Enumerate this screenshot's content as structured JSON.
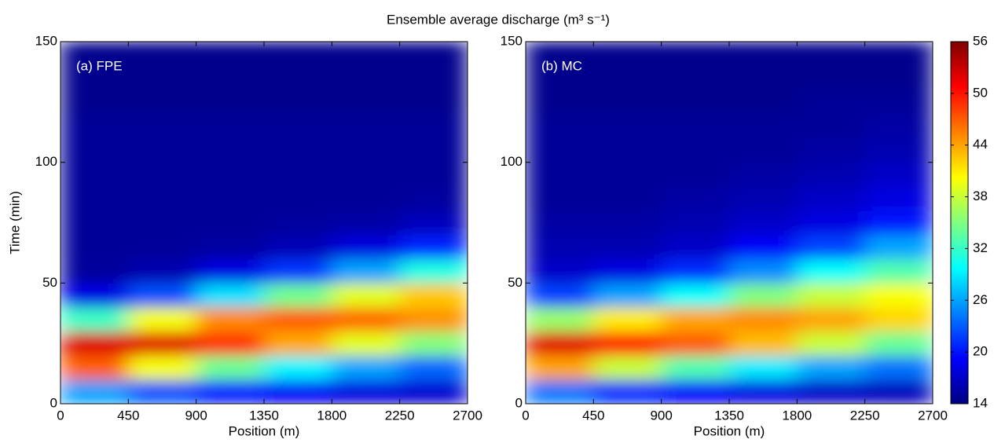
{
  "title": "Ensemble average discharge (m³ s⁻¹)",
  "colorbar": {
    "colormap": "jet",
    "clim": [
      14,
      56
    ],
    "ticks": [
      14,
      20,
      26,
      32,
      38,
      44,
      50,
      56
    ]
  },
  "chart_data": [
    {
      "type": "heatmap",
      "label": "(a) FPE",
      "xlabel": "Position (m)",
      "ylabel": "Time (min)",
      "xlim": [
        0,
        2700
      ],
      "xticks": [
        0,
        450,
        900,
        1350,
        1800,
        2250,
        2700
      ],
      "ylim": [
        0,
        150
      ],
      "yticks": [
        0,
        50,
        100,
        150
      ],
      "x": [
        225,
        675,
        1125,
        1575,
        2025,
        2475
      ],
      "y": [
        5,
        15,
        25,
        35,
        45,
        55,
        65,
        75,
        85,
        95,
        105,
        115,
        125,
        135,
        145
      ],
      "values": [
        [
          25.8,
          22.6,
          20.4,
          18.9,
          17.9,
          17.3
        ],
        [
          46.8,
          39.9,
          34.1,
          29.4,
          26.0,
          23.5
        ],
        [
          52.1,
          52.0,
          48.7,
          43.8,
          39.1,
          35.2
        ],
        [
          32.2,
          39.9,
          45.1,
          46.9,
          46.5,
          44.7
        ],
        [
          18.2,
          22.6,
          28.5,
          34.4,
          39.1,
          42.5
        ],
        [
          15.2,
          16.0,
          18.0,
          21.4,
          26.0,
          30.9
        ],
        [
          15,
          15.1,
          15.4,
          16.2,
          17.9,
          20.7
        ],
        [
          15,
          15,
          15,
          15.3,
          15.6,
          16.5
        ],
        [
          15,
          15,
          15,
          15,
          15,
          15.3
        ],
        [
          15,
          15,
          15,
          15,
          15,
          15
        ],
        [
          15,
          15,
          15,
          15,
          15,
          15
        ],
        [
          15,
          15,
          15,
          15,
          15,
          15
        ],
        [
          14.5,
          14.5,
          14.5,
          14.5,
          14.5,
          14.5
        ],
        [
          14.5,
          14.5,
          14.5,
          14.5,
          14.5,
          14.5
        ],
        [
          14.5,
          14.5,
          14.5,
          14.5,
          14.5,
          14.5
        ]
      ]
    },
    {
      "type": "heatmap",
      "label": "(b) MC",
      "xlabel": "Position (m)",
      "xlim": [
        0,
        2700
      ],
      "xticks": [
        0,
        450,
        900,
        1350,
        1800,
        2250,
        2700
      ],
      "ylim": [
        0,
        150
      ],
      "yticks": [
        0,
        50,
        100,
        150
      ],
      "x": [
        225,
        675,
        1125,
        1575,
        2025,
        2475
      ],
      "y": [
        5,
        15,
        25,
        35,
        45,
        55,
        65,
        75,
        85,
        95,
        105,
        115,
        125,
        135,
        145
      ],
      "values": [
        [
          24,
          21,
          19,
          18,
          17,
          16.5
        ],
        [
          44,
          38,
          33,
          29,
          26,
          24
        ],
        [
          52,
          50,
          47,
          43,
          38,
          34
        ],
        [
          36,
          41,
          44,
          45,
          44,
          42
        ],
        [
          22,
          26,
          30,
          35,
          38,
          40
        ],
        [
          17,
          18,
          21,
          25,
          30,
          33
        ],
        [
          16,
          16,
          17,
          19,
          22,
          26
        ],
        [
          15.5,
          15.5,
          16,
          17,
          18,
          20
        ],
        [
          15,
          15,
          15.5,
          16,
          17,
          18
        ],
        [
          15,
          15,
          15,
          15.5,
          16,
          17
        ],
        [
          15,
          15,
          15,
          15,
          15.5,
          16
        ],
        [
          15,
          15,
          15,
          15,
          15,
          15.5
        ],
        [
          14.5,
          14.5,
          14.5,
          14.5,
          15,
          15
        ],
        [
          14.5,
          14.5,
          14.5,
          14.5,
          14.5,
          14.5
        ],
        [
          14.5,
          14.5,
          14.5,
          14.5,
          14.5,
          14.5
        ]
      ]
    }
  ]
}
